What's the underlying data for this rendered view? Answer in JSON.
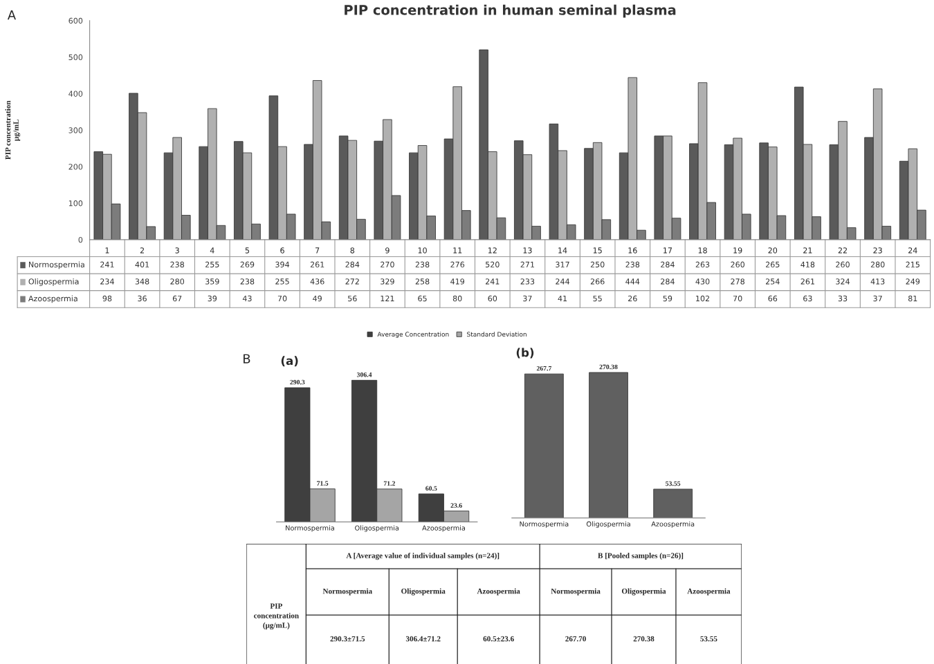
{
  "chart_data": [
    {
      "type": "bar",
      "title": "PIP concentration in human seminal plasma",
      "ylabel": "PIP concentration\nμg/mL",
      "annotations": [
        "A"
      ],
      "categories": [
        "1",
        "2",
        "3",
        "4",
        "5",
        "6",
        "7",
        "8",
        "9",
        "10",
        "11",
        "12",
        "13",
        "14",
        "15",
        "16",
        "17",
        "18",
        "19",
        "20",
        "21",
        "22",
        "23",
        "24"
      ],
      "series": [
        {
          "name": "Normospermia",
          "color": "#5a5a5a",
          "values": [
            241,
            401,
            238,
            255,
            269,
            394,
            261,
            284,
            270,
            238,
            276,
            520,
            271,
            317,
            250,
            238,
            284,
            263,
            260,
            265,
            418,
            260,
            280,
            215
          ]
        },
        {
          "name": "Oligospermia",
          "color": "#b0b0b0",
          "values": [
            234,
            348,
            280,
            359,
            238,
            255,
            436,
            272,
            329,
            258,
            419,
            241,
            233,
            244,
            266,
            444,
            284,
            430,
            278,
            254,
            261,
            324,
            413,
            249
          ]
        },
        {
          "name": "Azoospermia",
          "color": "#7c7c7c",
          "values": [
            98,
            36,
            67,
            39,
            43,
            70,
            49,
            56,
            121,
            65,
            80,
            60,
            37,
            41,
            55,
            26,
            59,
            102,
            70,
            66,
            63,
            33,
            37,
            81
          ]
        }
      ],
      "ylim": [
        0,
        600
      ],
      "yticks": [
        0,
        100,
        200,
        300,
        400,
        500,
        600
      ],
      "data_labels": true,
      "legend": "bottom left",
      "grid": false
    },
    {
      "type": "bar",
      "title": "(a)",
      "annotations": [
        "B"
      ],
      "categories": [
        "Normospermia",
        "Oligospermia",
        "Azoospermia"
      ],
      "series": [
        {
          "name": "Average Concentration",
          "color": "#3f3f3f",
          "values": [
            290.3,
            306.4,
            60.5
          ]
        },
        {
          "name": "Standard Deviation",
          "color": "#a5a5a5",
          "values": [
            71.5,
            71.2,
            23.6
          ]
        }
      ],
      "data_labels": true,
      "legend": "top",
      "tick_labels": "x",
      "grid": false
    },
    {
      "type": "bar",
      "title": "(b)",
      "categories": [
        "Normospermia",
        "Oligospermia",
        "Azoospermia"
      ],
      "color": "#606060",
      "values": [
        267.7,
        270.38,
        53.55
      ],
      "data_labels": true,
      "tick_labels": "x",
      "grid": false
    },
    {
      "type": "other",
      "ylabel": "PIP\nconcentration\n(μg/mL)",
      "annotations": [
        "A [Average value of individual samples (n=24)]",
        "B [Pooled samples (n=26)]"
      ],
      "categories": [
        "Normospermia",
        "Oligospermia",
        "Azoospermia",
        "Normospermia",
        "Oligospermia",
        "Azoospermia"
      ],
      "value_labels": [
        "290.3±71.5",
        "306.4±71.2",
        "60.5±23.6",
        "267.70",
        "270.38",
        "53.55"
      ]
    }
  ]
}
